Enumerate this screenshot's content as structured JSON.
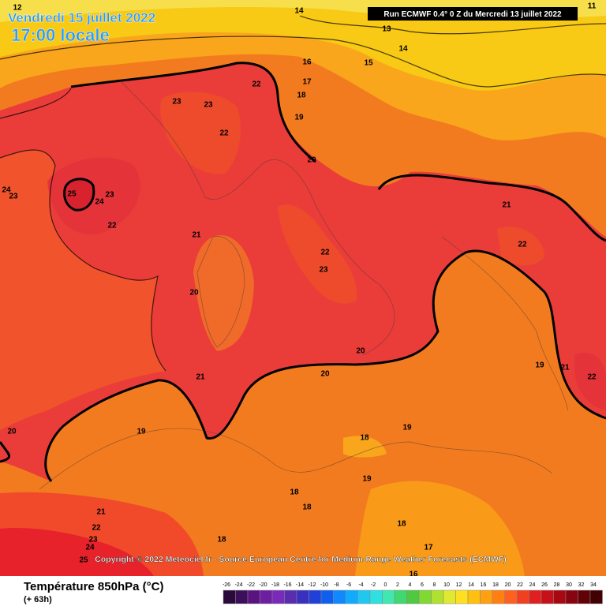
{
  "header": {
    "date": "Vendredi 15 juillet 2022",
    "time": "17:00 locale",
    "run": "Run ECMWF 0.4° 0 Z du Mercredi 13 juillet 2022"
  },
  "map": {
    "contour_labels": [
      12,
      14,
      11,
      13,
      14,
      16,
      15,
      17,
      22,
      18,
      23,
      23,
      19,
      22,
      20,
      24,
      23,
      25,
      23,
      24,
      22,
      21,
      21,
      22,
      22,
      23,
      20,
      20,
      19,
      21,
      22,
      21,
      20,
      20,
      19,
      18,
      19,
      19,
      18,
      18,
      21,
      22,
      18,
      23,
      24,
      18,
      25,
      17,
      16
    ],
    "copyright": "Copyright © 2022 Meteociel.fr - Source European Centre for Medium-Range Weather Forecasts (ECMWF)"
  },
  "legend": {
    "title": "Température 850hPa (°C)",
    "lead": "(+ 63h)",
    "ticks": [
      -26,
      -24,
      -22,
      -20,
      -18,
      -16,
      -14,
      -12,
      -10,
      -8,
      -6,
      -4,
      -2,
      0,
      2,
      4,
      6,
      8,
      10,
      12,
      14,
      16,
      18,
      20,
      22,
      24,
      26,
      28,
      30,
      32,
      34
    ]
  }
}
